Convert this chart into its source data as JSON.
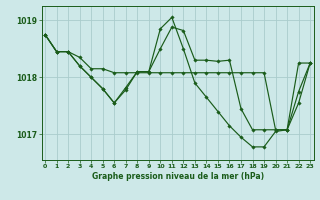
{
  "background_color": "#cde8e8",
  "line_color": "#1a5c1a",
  "grid_color": "#aacccc",
  "xlabel": "Graphe pression niveau de la mer (hPa)",
  "ylim": [
    1016.55,
    1019.25
  ],
  "xlim": [
    -0.3,
    23.3
  ],
  "yticks": [
    1017,
    1018,
    1019
  ],
  "xticks": [
    0,
    1,
    2,
    3,
    4,
    5,
    6,
    7,
    8,
    9,
    10,
    11,
    12,
    13,
    14,
    15,
    16,
    17,
    18,
    19,
    20,
    21,
    22,
    23
  ],
  "series": [
    {
      "y": [
        1018.75,
        1018.45,
        1018.45,
        1018.35,
        1018.15,
        1018.15,
        1018.08,
        1018.08,
        1018.08,
        1018.08,
        1018.08,
        1018.08,
        1018.08,
        1018.08,
        1018.08,
        1018.08,
        1018.08,
        1018.08,
        1018.08,
        1018.08,
        1017.08,
        1017.08,
        1018.25,
        1018.25
      ]
    },
    {
      "y": [
        1018.75,
        1018.45,
        1018.45,
        1018.2,
        1018.0,
        1017.8,
        1017.55,
        1017.78,
        1018.1,
        1018.1,
        1018.85,
        1019.05,
        1018.5,
        1017.9,
        1017.65,
        1017.4,
        1017.15,
        1016.95,
        1016.78,
        1016.78,
        1017.05,
        1017.08,
        1017.55,
        1018.25
      ]
    },
    {
      "y": [
        1018.75,
        1018.45,
        1018.45,
        1018.2,
        1018.0,
        1017.8,
        1017.55,
        1017.82,
        1018.1,
        1018.1,
        1018.5,
        1018.88,
        1018.82,
        1018.3,
        1018.3,
        1018.28,
        1018.3,
        1017.45,
        1017.08,
        1017.08,
        1017.08,
        1017.08,
        1017.75,
        1018.25
      ]
    }
  ]
}
